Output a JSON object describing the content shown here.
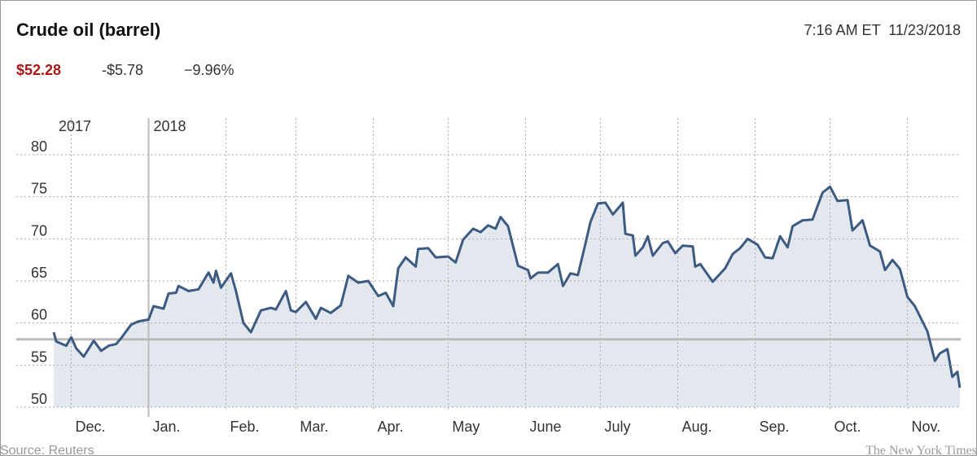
{
  "chart_data": {
    "type": "line",
    "title": "Crude oil (barrel)",
    "timestamp": "7:16 AM ET  11/23/2018",
    "price": "$52.28",
    "change": "-$5.78",
    "change_percent": "−9.96%",
    "source": "Source: Reuters",
    "credit": "The New York Times",
    "color": "#3d5a80",
    "area_color": "#e3e8ee",
    "price_color": "#a81817",
    "reference": 58.06,
    "x": [
      0,
      1,
      5,
      7,
      9,
      12,
      16,
      19,
      22,
      25,
      27,
      31,
      34,
      38,
      40,
      44,
      46,
      49,
      50,
      54,
      58,
      62,
      64,
      65,
      67,
      71,
      73,
      76,
      79,
      83,
      87,
      89,
      93,
      95,
      97,
      101,
      105,
      107,
      111,
      115,
      118,
      122,
      126,
      130,
      133,
      136,
      138,
      141,
      145,
      146,
      150,
      153,
      158,
      161,
      164,
      168,
      171,
      174,
      177,
      179,
      182,
      186,
      190,
      191,
      194,
      198,
      202,
      204,
      207,
      210,
      213,
      215,
      218,
      221,
      224,
      228,
      229,
      232,
      233,
      236,
      238,
      240,
      244,
      246,
      249,
      252,
      256,
      257,
      259,
      264,
      269,
      272,
      275,
      278,
      282,
      285,
      288,
      291,
      294,
      296,
      300,
      304,
      308,
      311,
      314,
      318,
      320,
      324,
      327,
      331,
      333,
      336,
      339,
      342,
      345,
      350,
      353,
      355,
      358,
      360,
      362,
      363
    ],
    "values": [
      58.9,
      57.8,
      57.3,
      58.3,
      57.0,
      56.0,
      57.9,
      56.7,
      57.3,
      57.5,
      58.2,
      59.8,
      60.2,
      60.4,
      62.0,
      61.7,
      63.5,
      63.6,
      64.4,
      63.8,
      64.0,
      66.0,
      64.8,
      66.2,
      64.2,
      65.9,
      63.8,
      60.0,
      58.9,
      61.5,
      61.8,
      61.6,
      63.8,
      61.5,
      61.3,
      62.5,
      60.5,
      61.8,
      61.2,
      62.1,
      65.6,
      64.8,
      65.0,
      63.2,
      63.6,
      62.0,
      66.5,
      67.8,
      66.7,
      68.8,
      68.9,
      67.8,
      67.9,
      67.2,
      69.9,
      71.2,
      70.8,
      71.6,
      71.2,
      72.6,
      71.5,
      66.8,
      66.3,
      65.3,
      66.0,
      66.0,
      67.0,
      64.4,
      65.9,
      65.7,
      69.4,
      72.0,
      74.2,
      74.3,
      72.9,
      74.3,
      70.6,
      70.4,
      68.0,
      69.0,
      70.3,
      68.0,
      69.5,
      69.7,
      68.3,
      69.2,
      69.1,
      66.7,
      67.0,
      64.9,
      66.5,
      68.2,
      68.9,
      70.0,
      69.3,
      67.8,
      67.7,
      70.3,
      69.0,
      71.5,
      72.2,
      72.3,
      75.5,
      76.2,
      74.5,
      74.6,
      71.0,
      72.2,
      69.2,
      68.5,
      66.3,
      67.5,
      66.4,
      63.1,
      62.0,
      59.0,
      55.5,
      56.4,
      56.9,
      53.6,
      54.2,
      52.3
    ],
    "xlim": [
      0,
      364
    ],
    "xticks": [
      {
        "value": 7,
        "label": "Dec."
      },
      {
        "value": 38,
        "label": "Jan."
      },
      {
        "value": 69,
        "label": "Feb."
      },
      {
        "value": 97,
        "label": "Mar."
      },
      {
        "value": 128,
        "label": "Apr."
      },
      {
        "value": 158,
        "label": "May"
      },
      {
        "value": 189,
        "label": "June"
      },
      {
        "value": 219,
        "label": "July"
      },
      {
        "value": 250,
        "label": "Aug."
      },
      {
        "value": 281,
        "label": "Sep."
      },
      {
        "value": 311,
        "label": "Oct."
      },
      {
        "value": 342,
        "label": "Nov."
      }
    ],
    "annotations": [
      {
        "x": 0,
        "label": "2017"
      },
      {
        "x": 38,
        "label": "2018"
      }
    ],
    "ylim": [
      50,
      80
    ],
    "yticks": [
      50,
      55,
      60,
      65,
      70,
      75,
      80
    ],
    "grid": true
  }
}
